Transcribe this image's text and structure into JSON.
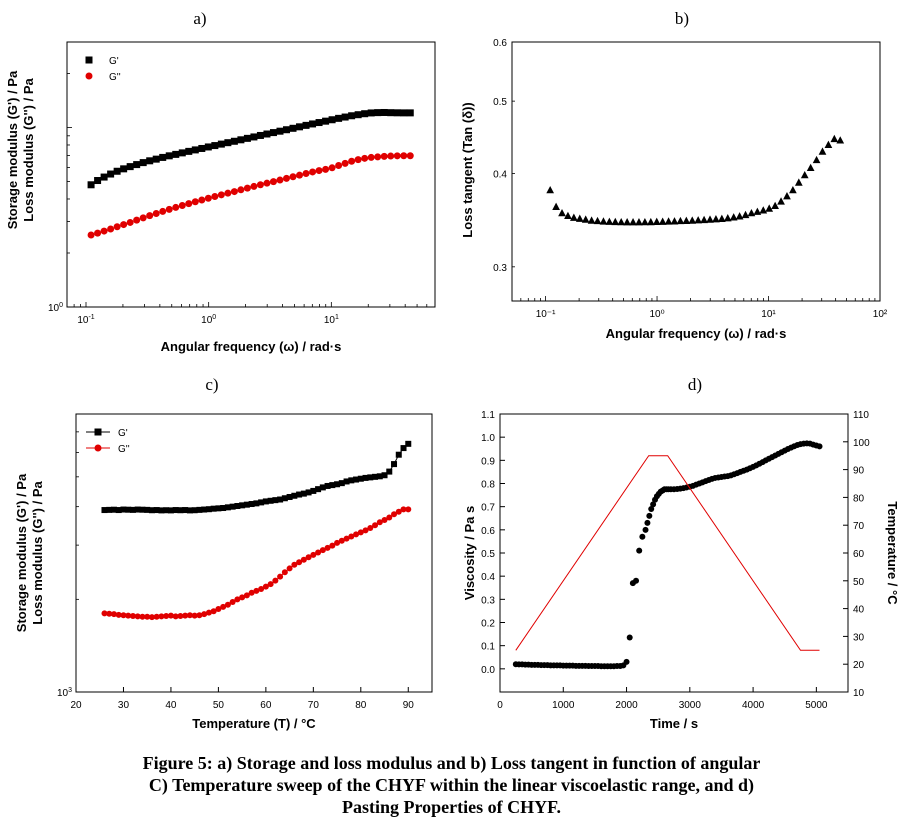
{
  "caption": {
    "line1": "Figure 5: a) Storage and loss modulus and b) Loss tangent in function of angular",
    "line2": "C) Temperature sweep of the CHYF within the linear viscoelastic range, and d)",
    "line3": "Pasting Properties of CHYF."
  },
  "colors": {
    "g_prime": "#000000",
    "g_double_prime": "#e00000",
    "temperature": "#e00000"
  },
  "chart_data": [
    {
      "id": "a",
      "panel_label": "a)",
      "type": "scatter",
      "xscale": "log",
      "yscale": "log",
      "xlim": [
        0.07,
        70
      ],
      "ylim": [
        1,
        30
      ],
      "xlabel": "Angular frequency (ω) / rad·s",
      "ylabel_lines": [
        "Storage modulus (G') / Pa",
        "Loss modulus (G'') / Pa"
      ],
      "xticks": [
        {
          "value": 0.1,
          "base": "10",
          "exp": "-1"
        },
        {
          "value": 1,
          "base": "10",
          "exp": "0"
        },
        {
          "value": 10,
          "base": "10",
          "exp": "1"
        }
      ],
      "yticks": [
        {
          "value": 1,
          "base": "10",
          "exp": "0"
        },
        {
          "value": 10,
          "base": "",
          "exp": ""
        }
      ],
      "legend": {
        "position": "top-left"
      },
      "series": [
        {
          "name": "G'",
          "marker": "square",
          "color": "#000000",
          "points_desc": "log-spaced x from 0.11 to 44, 50 points",
          "x_range": [
            0.11,
            44
          ],
          "y": [
            4.8,
            5.07,
            5.3,
            5.51,
            5.71,
            5.89,
            6.06,
            6.22,
            6.38,
            6.53,
            6.67,
            6.82,
            6.96,
            7.09,
            7.23,
            7.37,
            7.51,
            7.65,
            7.8,
            7.94,
            8.09,
            8.24,
            8.39,
            8.55,
            8.71,
            8.87,
            9.04,
            9.21,
            9.38,
            9.55,
            9.73,
            9.91,
            10.1,
            10.29,
            10.48,
            10.67,
            10.86,
            11.06,
            11.26,
            11.45,
            11.64,
            11.8,
            11.95,
            12.07,
            12.12,
            12.14,
            12.11,
            12.09,
            12.08,
            12.08
          ]
        },
        {
          "name": "G''",
          "marker": "circle",
          "color": "#e00000",
          "x_range": [
            0.11,
            44
          ],
          "y": [
            2.52,
            2.58,
            2.65,
            2.72,
            2.8,
            2.88,
            2.96,
            3.05,
            3.14,
            3.23,
            3.32,
            3.41,
            3.5,
            3.59,
            3.68,
            3.77,
            3.86,
            3.95,
            4.04,
            4.13,
            4.22,
            4.31,
            4.4,
            4.5,
            4.6,
            4.7,
            4.8,
            4.9,
            5,
            5.1,
            5.21,
            5.32,
            5.43,
            5.55,
            5.66,
            5.76,
            5.85,
            5.97,
            6.15,
            6.32,
            6.49,
            6.63,
            6.74,
            6.82,
            6.87,
            6.91,
            6.94,
            6.96,
            6.97,
            6.97
          ]
        }
      ]
    },
    {
      "id": "b",
      "panel_label": "b)",
      "type": "scatter",
      "xscale": "log",
      "yscale": "log",
      "xlim": [
        0.05,
        100
      ],
      "ylim": [
        0.27,
        0.6
      ],
      "xlabel": "Angular frequency (ω) / rad·s",
      "ylabel_lines": [
        "Loss tangent (Tan (δ))"
      ],
      "xticks": [
        {
          "value": 0.1,
          "label": "10⁻¹"
        },
        {
          "value": 1,
          "label": "10⁰"
        },
        {
          "value": 10,
          "label": "10¹"
        },
        {
          "value": 100,
          "label": "10²"
        }
      ],
      "yticks": [
        {
          "value": 0.3,
          "label": "0.3"
        },
        {
          "value": 0.4,
          "label": "0.4"
        },
        {
          "value": 0.5,
          "label": "0.5"
        },
        {
          "value": 0.6,
          "label": "0.6"
        }
      ],
      "series": [
        {
          "name": "",
          "marker": "triangle",
          "color": "#000000",
          "x_range": [
            0.11,
            44
          ],
          "y": [
            0.38,
            0.361,
            0.354,
            0.351,
            0.349,
            0.348,
            0.347,
            0.346,
            0.3455,
            0.345,
            0.3447,
            0.3445,
            0.3443,
            0.3442,
            0.3442,
            0.3442,
            0.3443,
            0.3444,
            0.3446,
            0.3448,
            0.345,
            0.3452,
            0.3455,
            0.3457,
            0.346,
            0.3463,
            0.3466,
            0.347,
            0.3474,
            0.3478,
            0.3485,
            0.3495,
            0.3505,
            0.352,
            0.354,
            0.3555,
            0.357,
            0.359,
            0.362,
            0.367,
            0.373,
            0.38,
            0.389,
            0.398,
            0.407,
            0.417,
            0.428,
            0.437,
            0.445,
            0.443
          ]
        }
      ]
    },
    {
      "id": "c",
      "panel_label": "c)",
      "type": "scatter",
      "xscale": "linear",
      "yscale": "log",
      "xlim": [
        20,
        95
      ],
      "ylim": [
        1000,
        8000
      ],
      "xlabel": "Temperature (T) / °C",
      "ylabel_lines": [
        "Storage modulus (G') / Pa",
        "Loss modulus (G'') / Pa"
      ],
      "xticks": [
        20,
        30,
        40,
        50,
        60,
        70,
        80,
        90
      ],
      "yticks": [
        {
          "value": 1000,
          "base": "10",
          "exp": "3"
        }
      ],
      "legend": {
        "position": "top-left"
      },
      "series": [
        {
          "name": "G'",
          "marker": "square-line",
          "color": "#000000",
          "x": [
            26,
            27,
            28,
            29,
            30,
            31,
            32,
            33,
            34,
            35,
            36,
            37,
            38,
            39,
            40,
            41,
            42,
            43,
            44,
            45,
            46,
            47,
            48,
            49,
            50,
            51,
            52,
            53,
            54,
            55,
            56,
            57,
            58,
            59,
            60,
            61,
            62,
            63,
            64,
            65,
            66,
            67,
            68,
            69,
            70,
            71,
            72,
            73,
            74,
            75,
            76,
            77,
            78,
            79,
            80,
            81,
            82,
            83,
            84,
            85,
            86,
            87,
            88,
            89,
            90
          ],
          "y": [
            3900,
            3905,
            3910,
            3900,
            3915,
            3910,
            3905,
            3915,
            3910,
            3905,
            3895,
            3900,
            3890,
            3895,
            3890,
            3900,
            3895,
            3900,
            3890,
            3895,
            3905,
            3915,
            3925,
            3940,
            3950,
            3960,
            3980,
            4000,
            4020,
            4040,
            4060,
            4080,
            4100,
            4130,
            4160,
            4180,
            4200,
            4220,
            4260,
            4300,
            4340,
            4380,
            4410,
            4450,
            4500,
            4560,
            4620,
            4670,
            4700,
            4730,
            4770,
            4830,
            4870,
            4900,
            4930,
            4960,
            4980,
            5000,
            5020,
            5060,
            5200,
            5500,
            5900,
            6200,
            6400
          ]
        },
        {
          "name": "G''",
          "marker": "circle-line",
          "color": "#e00000",
          "x": [
            26,
            27,
            28,
            29,
            30,
            31,
            32,
            33,
            34,
            35,
            36,
            37,
            38,
            39,
            40,
            41,
            42,
            43,
            44,
            45,
            46,
            47,
            48,
            49,
            50,
            51,
            52,
            53,
            54,
            55,
            56,
            57,
            58,
            59,
            60,
            61,
            62,
            63,
            64,
            65,
            66,
            67,
            68,
            69,
            70,
            71,
            72,
            73,
            74,
            75,
            76,
            77,
            78,
            79,
            80,
            81,
            82,
            83,
            84,
            85,
            86,
            87,
            88,
            89,
            90
          ],
          "y": [
            1800,
            1795,
            1790,
            1780,
            1775,
            1770,
            1765,
            1760,
            1755,
            1755,
            1750,
            1755,
            1760,
            1765,
            1770,
            1760,
            1765,
            1770,
            1775,
            1770,
            1775,
            1790,
            1810,
            1830,
            1860,
            1890,
            1920,
            1960,
            2000,
            2030,
            2060,
            2100,
            2130,
            2160,
            2200,
            2240,
            2300,
            2370,
            2450,
            2520,
            2590,
            2640,
            2690,
            2740,
            2790,
            2840,
            2890,
            2940,
            2990,
            3050,
            3100,
            3150,
            3200,
            3250,
            3300,
            3350,
            3410,
            3480,
            3560,
            3620,
            3690,
            3780,
            3850,
            3920,
            3920
          ]
        }
      ]
    },
    {
      "id": "d",
      "panel_label": "d)",
      "type": "line",
      "xlim": [
        0,
        5500
      ],
      "ylim": [
        -0.1,
        1.1
      ],
      "y2lim": [
        10,
        110
      ],
      "xlabel": "Time / s",
      "ylabel": "Viscosity / Pa s",
      "y2label": "Temperature / °C",
      "xticks": [
        0,
        1000,
        2000,
        3000,
        4000,
        5000
      ],
      "yticks": [
        0.0,
        0.1,
        0.2,
        0.3,
        0.4,
        0.5,
        0.6,
        0.7,
        0.8,
        0.9,
        1.0,
        1.1
      ],
      "y2ticks": [
        10,
        20,
        30,
        40,
        50,
        60,
        70,
        80,
        90,
        100,
        110
      ],
      "series": [
        {
          "name": "",
          "axis": "left",
          "marker": "circle",
          "color": "#000000",
          "x": [
            250,
            300,
            350,
            400,
            450,
            500,
            550,
            600,
            650,
            700,
            750,
            800,
            850,
            900,
            950,
            1000,
            1050,
            1100,
            1150,
            1200,
            1250,
            1300,
            1350,
            1400,
            1450,
            1500,
            1550,
            1600,
            1650,
            1700,
            1750,
            1800,
            1850,
            1900,
            1950,
            2000,
            2050,
            2100,
            2150,
            2200,
            2250,
            2300,
            2330,
            2360,
            2390,
            2420,
            2450,
            2480,
            2510,
            2540,
            2570,
            2600,
            2630,
            2660,
            2700,
            2750,
            2800,
            2850,
            2900,
            2950,
            3000,
            3050,
            3100,
            3150,
            3200,
            3250,
            3300,
            3350,
            3400,
            3450,
            3500,
            3550,
            3600,
            3650,
            3700,
            3750,
            3800,
            3850,
            3900,
            3950,
            4000,
            4050,
            4100,
            4150,
            4200,
            4250,
            4300,
            4350,
            4400,
            4450,
            4500,
            4550,
            4600,
            4650,
            4700,
            4750,
            4800,
            4850,
            4900,
            4950,
            5000,
            5050
          ],
          "y": [
            0.02,
            0.019,
            0.019,
            0.018,
            0.018,
            0.017,
            0.017,
            0.017,
            0.016,
            0.016,
            0.016,
            0.015,
            0.015,
            0.015,
            0.015,
            0.014,
            0.014,
            0.014,
            0.014,
            0.013,
            0.013,
            0.013,
            0.013,
            0.012,
            0.012,
            0.012,
            0.012,
            0.011,
            0.011,
            0.011,
            0.011,
            0.011,
            0.012,
            0.012,
            0.015,
            0.03,
            0.135,
            0.37,
            0.38,
            0.51,
            0.57,
            0.6,
            0.63,
            0.66,
            0.69,
            0.71,
            0.73,
            0.745,
            0.755,
            0.765,
            0.77,
            0.775,
            0.775,
            0.775,
            0.775,
            0.775,
            0.776,
            0.778,
            0.78,
            0.783,
            0.786,
            0.79,
            0.795,
            0.8,
            0.805,
            0.81,
            0.815,
            0.82,
            0.824,
            0.826,
            0.828,
            0.83,
            0.832,
            0.835,
            0.84,
            0.845,
            0.85,
            0.855,
            0.86,
            0.866,
            0.872,
            0.878,
            0.885,
            0.892,
            0.9,
            0.907,
            0.914,
            0.921,
            0.928,
            0.935,
            0.942,
            0.949,
            0.955,
            0.961,
            0.966,
            0.97,
            0.972,
            0.973,
            0.972,
            0.968,
            0.964,
            0.96
          ]
        },
        {
          "name": "",
          "axis": "right",
          "marker": "none",
          "color": "#e00000",
          "x": [
            250,
            2350,
            2650,
            4750,
            5050
          ],
          "y": [
            25,
            95,
            95,
            25,
            25
          ]
        }
      ]
    }
  ]
}
